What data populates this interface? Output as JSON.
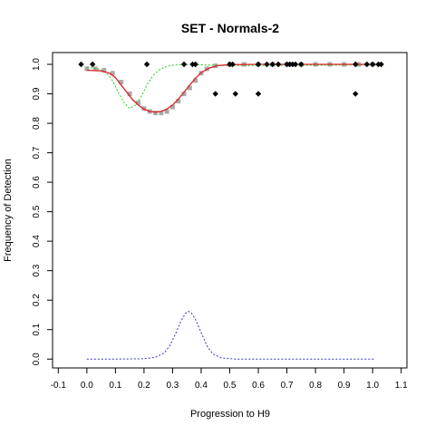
{
  "chart_data": {
    "type": "scatter",
    "title": "SET - Normals-2",
    "xlabel": "Progression to H9",
    "ylabel": "Frequency of Detection",
    "xlim": [
      -0.12,
      1.12
    ],
    "ylim": [
      -0.03,
      1.04
    ],
    "x_ticks": [
      -0.1,
      0,
      0.1,
      0.2,
      0.3,
      0.4,
      0.5,
      0.6,
      0.7,
      0.8,
      0.9,
      1,
      1.1
    ],
    "x_tick_labels": [
      "-0.1",
      "0.0",
      "0.1",
      "0.2",
      "0.3",
      "0.4",
      "0.5",
      "0.6",
      "0.7",
      "0.8",
      "0.9",
      "1.0",
      "1.1"
    ],
    "y_ticks": [
      0,
      0.1,
      0.2,
      0.3,
      0.4,
      0.5,
      0.6,
      0.7,
      0.8,
      0.9,
      1
    ],
    "y_tick_labels": [
      "0.0",
      "0.1",
      "0.2",
      "0.3",
      "0.4",
      "0.5",
      "0.6",
      "0.7",
      "0.8",
      "0.9",
      "1.0"
    ],
    "grid": false,
    "series": [
      {
        "kind": "points",
        "color": "#000000",
        "x": [
          -0.02,
          0.02,
          0.21,
          0.34,
          0.37,
          0.38,
          0.45,
          0.5,
          0.51,
          0.52,
          0.6,
          0.6,
          0.63,
          0.65,
          0.67,
          0.7,
          0.71,
          0.72,
          0.73,
          0.75,
          0.94,
          0.94,
          0.98,
          1.0,
          1.02,
          1.03
        ],
        "y": [
          1.0,
          1.0,
          1.0,
          1.0,
          1.0,
          1.0,
          0.9,
          1.0,
          1.0,
          0.9,
          1.0,
          0.9,
          1.0,
          1.0,
          1.0,
          1.0,
          1.0,
          1.0,
          1.0,
          1.0,
          1.0,
          0.9,
          1.0,
          1.0,
          1.0,
          1.0
        ]
      },
      {
        "kind": "points",
        "color": "#aaaaaa",
        "x": [
          0.0,
          0.03,
          0.06,
          0.09,
          0.12,
          0.15,
          0.18,
          0.2,
          0.22,
          0.24,
          0.26,
          0.28,
          0.3,
          0.32,
          0.34,
          0.36,
          0.38,
          0.4,
          0.42,
          0.45,
          0.5,
          0.55,
          0.6,
          0.65,
          0.7,
          0.75,
          0.8,
          0.85,
          0.9,
          0.95,
          1.0
        ],
        "y": [
          0.985,
          0.985,
          0.98,
          0.97,
          0.94,
          0.9,
          0.87,
          0.85,
          0.84,
          0.835,
          0.835,
          0.84,
          0.855,
          0.875,
          0.9,
          0.92,
          0.945,
          0.97,
          0.985,
          0.995,
          1.0,
          1.0,
          1.0,
          1.0,
          1.0,
          1.0,
          1.0,
          1.0,
          1.0,
          1.0,
          1.0
        ]
      },
      {
        "kind": "line",
        "color": "#dd2222",
        "x": [
          0.0,
          0.05,
          0.08,
          0.1,
          0.12,
          0.14,
          0.16,
          0.18,
          0.2,
          0.22,
          0.24,
          0.26,
          0.28,
          0.3,
          0.32,
          0.34,
          0.36,
          0.38,
          0.4,
          0.43,
          0.46,
          0.5,
          0.6,
          0.7,
          0.8,
          0.9,
          1.0,
          1.03
        ],
        "y": [
          0.98,
          0.978,
          0.97,
          0.955,
          0.93,
          0.905,
          0.88,
          0.862,
          0.848,
          0.84,
          0.838,
          0.84,
          0.848,
          0.862,
          0.882,
          0.905,
          0.93,
          0.953,
          0.972,
          0.988,
          0.996,
          0.999,
          1.0,
          1.0,
          1.0,
          1.0,
          1.0,
          1.0
        ]
      },
      {
        "kind": "line",
        "color": "#22cc22",
        "dashed": true,
        "x": [
          0.0,
          0.04,
          0.07,
          0.09,
          0.11,
          0.13,
          0.15,
          0.17,
          0.19,
          0.21,
          0.23,
          0.25,
          0.27,
          0.29,
          0.31,
          0.34,
          0.38,
          0.45,
          0.5,
          0.6,
          0.7,
          0.8,
          0.9,
          1.0,
          1.03
        ],
        "y": [
          0.99,
          0.985,
          0.97,
          0.945,
          0.905,
          0.87,
          0.85,
          0.862,
          0.89,
          0.93,
          0.96,
          0.98,
          0.99,
          0.995,
          0.998,
          0.999,
          0.999,
          0.997,
          0.996,
          0.996,
          0.997,
          0.997,
          0.998,
          0.998,
          0.998
        ]
      },
      {
        "kind": "line",
        "color": "#3333cc",
        "dashed": true,
        "x": [
          0.0,
          0.1,
          0.2,
          0.24,
          0.27,
          0.29,
          0.31,
          0.33,
          0.345,
          0.355,
          0.365,
          0.38,
          0.4,
          0.42,
          0.44,
          0.47,
          0.52,
          0.6,
          0.8,
          1.0,
          1.01
        ],
        "y": [
          0.0,
          0.0,
          0.001,
          0.006,
          0.02,
          0.045,
          0.085,
          0.13,
          0.155,
          0.162,
          0.158,
          0.135,
          0.09,
          0.045,
          0.018,
          0.004,
          0.0,
          0.0,
          0.0,
          0.0,
          0.0
        ]
      }
    ]
  }
}
